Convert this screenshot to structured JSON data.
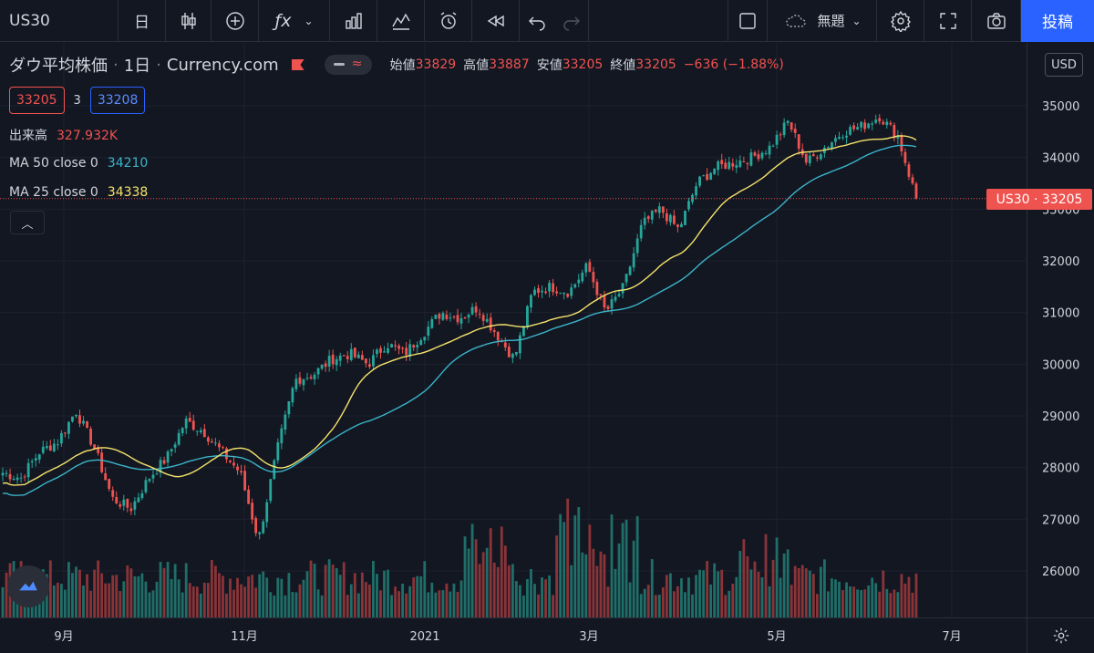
{
  "toolbar": {
    "symbol": "US30",
    "interval": "日",
    "layout_name": "無題",
    "post_label": "投稿"
  },
  "legend": {
    "title": "ダウ平均株価",
    "interval": "1日",
    "source": "Currency.com",
    "open_label": "始値",
    "open": "33829",
    "high_label": "高値",
    "high": "33887",
    "low_label": "安値",
    "low": "33205",
    "close_label": "終値",
    "close": "33205",
    "change": "−636 (−1.88%)",
    "bid": "33205",
    "spread": "3",
    "ask": "33208",
    "volume_label": "出来高",
    "volume": "327.932K",
    "ma50_label": "MA 50 close 0",
    "ma50_value": "34210",
    "ma25_label": "MA 25 close 0",
    "ma25_value": "34338"
  },
  "axis": {
    "currency": "USD",
    "current_label": "US30 · 33205"
  },
  "colors": {
    "up": "#26a69a",
    "down": "#ef5350",
    "ma50": "#3ab4c9",
    "ma25": "#f5e36b",
    "background": "#131722",
    "volume_up": "#1f6e68",
    "volume_down": "#8a3438"
  },
  "chart_data": {
    "type": "candlestick",
    "title": "ダウ平均株価",
    "y_ticks": [
      26000,
      27000,
      28000,
      29000,
      30000,
      31000,
      32000,
      33000,
      34000,
      35000
    ],
    "x_ticks": [
      "9月",
      "11月",
      "2021",
      "3月",
      "5月",
      "7月"
    ],
    "ylim": [
      25500,
      36000
    ],
    "current_price": 33205,
    "close_series_weekly": [
      27900,
      27800,
      28300,
      28500,
      29100,
      28400,
      27400,
      27200,
      27800,
      28200,
      28900,
      28700,
      28300,
      27900,
      26600,
      28300,
      29700,
      29800,
      30100,
      30200,
      30000,
      30400,
      30200,
      30600,
      31000,
      30900,
      31100,
      30600,
      30100,
      31400,
      31500,
      31400,
      31900,
      31000,
      31500,
      32700,
      33000,
      32600,
      33500,
      33800,
      33900,
      34000,
      34200,
      34700,
      33900,
      34200,
      34500,
      34600,
      34800,
      34400,
      33205
    ],
    "ma25_end": 34338,
    "ma50_end": 34210
  }
}
